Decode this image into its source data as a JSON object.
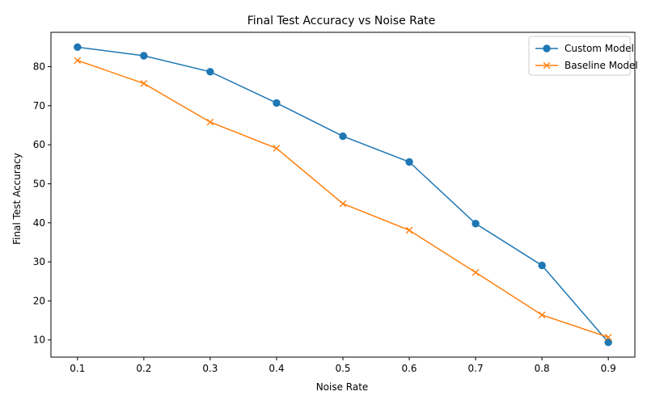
{
  "chart_data": {
    "type": "line",
    "title": "Final Test Accuracy vs Noise Rate",
    "xlabel": "Noise Rate",
    "ylabel": "Final Test Accuracy",
    "x": [
      0.1,
      0.2,
      0.3,
      0.4,
      0.5,
      0.6,
      0.7,
      0.8,
      0.9
    ],
    "x_tick_labels": [
      "0.1",
      "0.2",
      "0.3",
      "0.4",
      "0.5",
      "0.6",
      "0.7",
      "0.8",
      "0.9"
    ],
    "y_ticks": [
      10,
      20,
      30,
      40,
      50,
      60,
      70,
      80
    ],
    "y_tick_labels": [
      "10",
      "20",
      "30",
      "40",
      "50",
      "60",
      "70",
      "80"
    ],
    "xlim": [
      0.06,
      0.94
    ],
    "ylim": [
      5.6,
      88.8
    ],
    "grid": false,
    "legend_position": "top-right",
    "series": [
      {
        "name": "Custom Model",
        "color": "#1f77b4",
        "marker": "circle",
        "values": [
          85.0,
          82.8,
          78.7,
          70.7,
          62.2,
          55.6,
          39.8,
          29.1,
          9.4
        ]
      },
      {
        "name": "Baseline Model",
        "color": "#ff7f0e",
        "marker": "x",
        "values": [
          81.6,
          75.7,
          65.8,
          59.1,
          44.9,
          38.1,
          27.3,
          16.4,
          10.7
        ]
      }
    ]
  }
}
